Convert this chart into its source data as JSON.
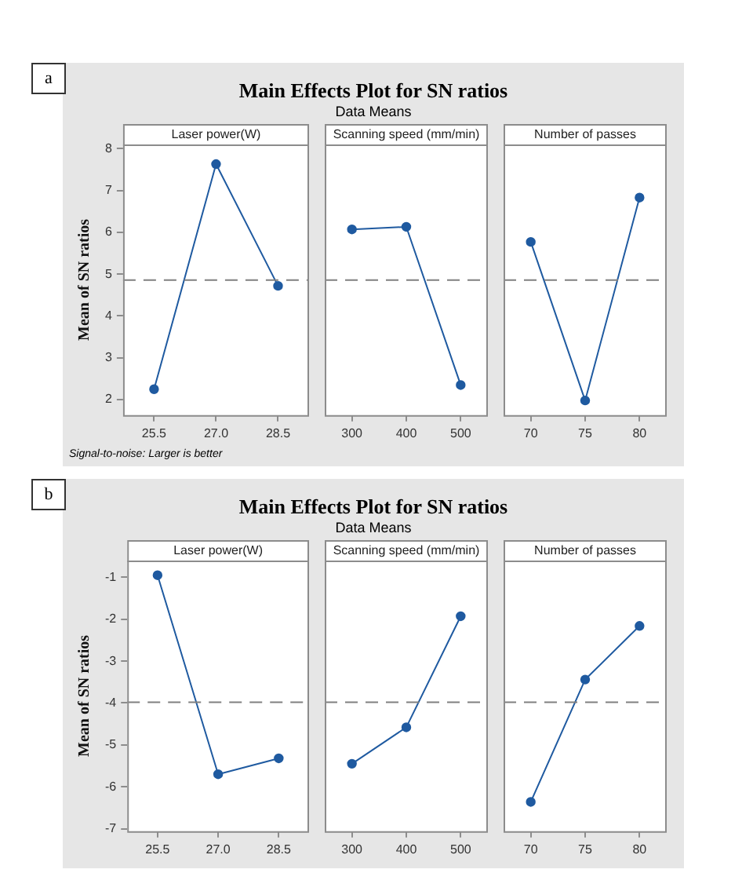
{
  "chart_data": [
    {
      "type": "line",
      "ylabel": "Mean of SN ratios",
      "xlabel": "Laser power(W)",
      "annotations": [
        "a",
        "Signal-to-noise: Larger is better"
      ],
      "categories": [
        "25.5",
        "27.0",
        "28.5"
      ],
      "series": [
        {
          "color": "#1f5aa0",
          "values": [
            2.25,
            7.63,
            4.72
          ]
        }
      ],
      "ylim": [
        1.63,
        8.1
      ],
      "yticks": [
        2,
        3,
        4,
        5,
        6,
        7,
        8
      ],
      "ref_lines": [
        {
          "axis": "y",
          "value": 4.86,
          "color": "#808080",
          "line_style": "dashed"
        }
      ],
      "marker": "circle"
    },
    {
      "type": "line",
      "title": "Main Effects Plot for SN ratios",
      "subtitle": "Data Means",
      "xlabel": "Scanning speed (mm/min)",
      "categories": [
        "300",
        "400",
        "500"
      ],
      "series": [
        {
          "color": "#1f5aa0",
          "values": [
            6.07,
            6.13,
            2.35
          ]
        }
      ],
      "ylim": [
        1.63,
        8.1
      ],
      "yticks": [
        2,
        3,
        4,
        5,
        6,
        7,
        8
      ],
      "tick_labels": "x",
      "ref_lines": [
        {
          "axis": "y",
          "value": 4.86,
          "color": "#808080",
          "line_style": "dashed"
        }
      ],
      "marker": "circle"
    },
    {
      "type": "line",
      "xlabel": "Number of passes",
      "categories": [
        "70",
        "75",
        "80"
      ],
      "series": [
        {
          "color": "#1f5aa0",
          "values": [
            5.77,
            1.98,
            6.83
          ]
        }
      ],
      "ylim": [
        1.63,
        8.1
      ],
      "yticks": [
        2,
        3,
        4,
        5,
        6,
        7,
        8
      ],
      "tick_labels": "x",
      "ref_lines": [
        {
          "axis": "y",
          "value": 4.86,
          "color": "#808080",
          "line_style": "dashed"
        }
      ],
      "marker": "circle"
    },
    {
      "type": "line",
      "ylabel": "Mean of SN ratios",
      "xlabel": "Laser power(W)",
      "annotations": [
        "b"
      ],
      "categories": [
        "25.5",
        "27.0",
        "28.5"
      ],
      "series": [
        {
          "color": "#1f5aa0",
          "values": [
            -0.95,
            -5.7,
            -5.32
          ]
        }
      ],
      "ylim": [
        -7.06,
        -0.6
      ],
      "yticks": [
        -7,
        -6,
        -5,
        -4,
        -3,
        -2,
        -1
      ],
      "ref_lines": [
        {
          "axis": "y",
          "value": -3.98,
          "color": "#808080",
          "line_style": "dashed"
        }
      ],
      "marker": "circle"
    },
    {
      "type": "line",
      "title": "Main Effects Plot for SN ratios",
      "subtitle": "Data Means",
      "xlabel": "Scanning speed (mm/min)",
      "categories": [
        "300",
        "400",
        "500"
      ],
      "series": [
        {
          "color": "#1f5aa0",
          "values": [
            -5.45,
            -4.58,
            -1.93
          ]
        }
      ],
      "ylim": [
        -7.06,
        -0.6
      ],
      "yticks": [
        -7,
        -6,
        -5,
        -4,
        -3,
        -2,
        -1
      ],
      "tick_labels": "x",
      "ref_lines": [
        {
          "axis": "y",
          "value": -3.98,
          "color": "#808080",
          "line_style": "dashed"
        }
      ],
      "marker": "circle"
    },
    {
      "type": "line",
      "xlabel": "Number of passes",
      "categories": [
        "70",
        "75",
        "80"
      ],
      "series": [
        {
          "color": "#1f5aa0",
          "values": [
            -6.36,
            -3.44,
            -2.16
          ]
        }
      ],
      "ylim": [
        -7.06,
        -0.6
      ],
      "yticks": [
        -7,
        -6,
        -5,
        -4,
        -3,
        -2,
        -1
      ],
      "tick_labels": "x",
      "ref_lines": [
        {
          "axis": "y",
          "value": -3.98,
          "color": "#808080",
          "line_style": "dashed"
        }
      ],
      "marker": "circle"
    }
  ]
}
